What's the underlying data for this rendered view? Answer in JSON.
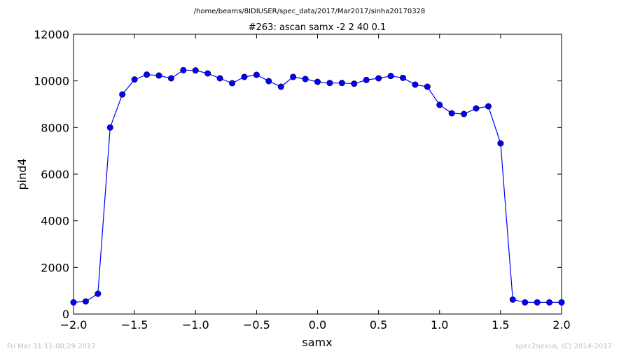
{
  "figure": {
    "suptitle": "/home/beams/8IDIUSER/spec_data/2017/Mar2017/sinha20170328",
    "footer_left": "Fri Mar 31 11:00:29 2017",
    "footer_right": "spec2nexus, (C) 2014-2017"
  },
  "chart_data": {
    "type": "line",
    "title": "#263: ascan  samx -2 2  40 0.1",
    "xlabel": "samx",
    "ylabel": "pind4",
    "xlim": [
      -2.0,
      2.0
    ],
    "ylim": [
      0,
      12000
    ],
    "xticks": [
      -2.0,
      -1.5,
      -1.0,
      -0.5,
      0.0,
      0.5,
      1.0,
      1.5,
      2.0
    ],
    "xtick_labels": [
      "−2.0",
      "−1.5",
      "−1.0",
      "−0.5",
      "0.0",
      "0.5",
      "1.0",
      "1.5",
      "2.0"
    ],
    "yticks": [
      0,
      2000,
      4000,
      6000,
      8000,
      10000,
      12000
    ],
    "ytick_labels": [
      "0",
      "2000",
      "4000",
      "6000",
      "8000",
      "10000",
      "12000"
    ],
    "grid": false,
    "line_color": "#0000ff",
    "marker": "circle",
    "series": [
      {
        "x": [
          -2.0,
          -1.9,
          -1.8,
          -1.7,
          -1.6,
          -1.5,
          -1.4,
          -1.3,
          -1.2,
          -1.1,
          -1.0,
          -0.9,
          -0.8,
          -0.7,
          -0.6,
          -0.5,
          -0.4,
          -0.3,
          -0.2,
          -0.1,
          0.0,
          0.1,
          0.2,
          0.3,
          0.4,
          0.5,
          0.6,
          0.7,
          0.8,
          0.9,
          1.0,
          1.1,
          1.2,
          1.3,
          1.4,
          1.5,
          1.6,
          1.7,
          1.8,
          1.9,
          2.0
        ],
        "y": [
          500,
          540,
          870,
          8000,
          9420,
          10060,
          10270,
          10230,
          10110,
          10460,
          10450,
          10320,
          10110,
          9900,
          10170,
          10260,
          9990,
          9750,
          10170,
          10080,
          9960,
          9910,
          9910,
          9880,
          10040,
          10110,
          10210,
          10130,
          9840,
          9750,
          8970,
          8610,
          8580,
          8820,
          8910,
          7320,
          620,
          500,
          500,
          500,
          500
        ]
      }
    ]
  }
}
